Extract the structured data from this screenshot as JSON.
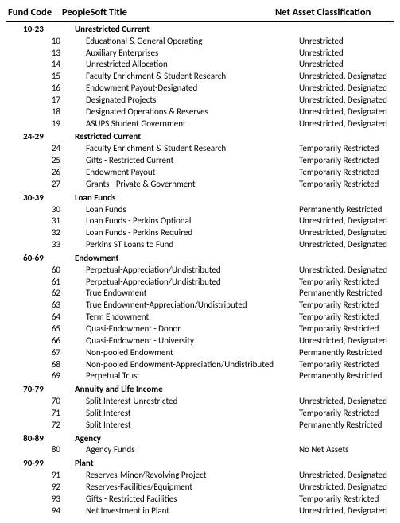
{
  "header": {
    "code": "Fund Code",
    "title": "PeopleSoft Title",
    "class": "Net Asset Classification"
  },
  "sections": [
    {
      "range": "10-23",
      "title": "Unrestricted Current",
      "rows": [
        {
          "code": "10",
          "title": "Educational & General Operating",
          "class": "Unrestricted"
        },
        {
          "code": "13",
          "title": "Auxiliary Enterprises",
          "class": "Unrestricted"
        },
        {
          "code": "14",
          "title": "Unrestricted Allocation",
          "class": "Unrestricted"
        },
        {
          "code": "15",
          "title": "Faculty Enrichment & Student  Research",
          "class": "Unrestricted, Designated"
        },
        {
          "code": "16",
          "title": "Endowment Payout-Designated",
          "class": "Unrestricted, Designated"
        },
        {
          "code": "17",
          "title": "Designated Projects",
          "class": "Unrestricted, Designated"
        },
        {
          "code": "18",
          "title": "Designated Operations & Reserves",
          "class": "Unrestricted, Designated"
        },
        {
          "code": "19",
          "title": "ASUPS Student Government",
          "class": "Unrestricted, Designated"
        }
      ]
    },
    {
      "range": "24-29",
      "title": "Restricted Current",
      "rows": [
        {
          "code": "24",
          "title": "Faculty Enrichment & Student  Research",
          "class": "Temporarily Restricted"
        },
        {
          "code": "25",
          "title": "Gifts - Restricted Current",
          "class": "Temporarily Restricted"
        },
        {
          "code": "26",
          "title": "Endowment Payout",
          "class": "Temporarily Restricted"
        },
        {
          "code": "27",
          "title": "Grants - Private & Government",
          "class": "Temporarily Restricted"
        }
      ]
    },
    {
      "range": "30-39",
      "title": "Loan Funds",
      "rows": [
        {
          "code": "30",
          "title": "Loan Funds",
          "class": "Permanently Restricted"
        },
        {
          "code": "31",
          "title": "Loan Funds - Perkins Optional",
          "class": "Unrestricted, Designated"
        },
        {
          "code": "32",
          "title": "Loan Funds - Perkins Required",
          "class": "Unrestricted, Designated"
        },
        {
          "code": "33",
          "title": "Perkins ST Loans to Fund",
          "class": "Unrestricted, Designated"
        }
      ]
    },
    {
      "range": "60-69",
      "title": "Endowment",
      "rows": [
        {
          "code": "60",
          "title": "Perpetual-Appreciation/Undistributed",
          "class": "Unrestricted. Designated"
        },
        {
          "code": "61",
          "title": "Perpetual-Appreciation/Undistributed",
          "class": "Temporarily Restricted"
        },
        {
          "code": "62",
          "title": "True Endowment",
          "class": "Permanently Restricted"
        },
        {
          "code": "63",
          "title": "True Endowment-Appreciation/Undistributed",
          "class": "Temporarily Restricted"
        },
        {
          "code": "64",
          "title": "Term Endowment",
          "class": "Temporarily Restricted"
        },
        {
          "code": "65",
          "title": "Quasi-Endowment - Donor",
          "class": "Temporarily Restricted"
        },
        {
          "code": "66",
          "title": "Quasi-Endowment - University",
          "class": "Unrestricted, Designated"
        },
        {
          "code": "67",
          "title": "Non-pooled Endowment",
          "class": "Permanently Restricted"
        },
        {
          "code": "68",
          "title": "Non-pooled Endowment-Appreciation/Undistributed",
          "class": "Temporarily Restricted"
        },
        {
          "code": "69",
          "title": "Perpetual Trust",
          "class": "Permanently Restricted"
        }
      ]
    },
    {
      "range": "70-79",
      "title": "Annuity and Life Income",
      "rows": [
        {
          "code": "70",
          "title": "Split Interest-Unrestricted",
          "class": "Unrestricted, Designated"
        },
        {
          "code": "71",
          "title": "Split Interest",
          "class": "Temporarily Restricted"
        },
        {
          "code": "72",
          "title": "Split Interest",
          "class": "Permanently Restricted"
        }
      ]
    },
    {
      "range": "80-89",
      "title": "Agency",
      "rows": [
        {
          "code": "80",
          "title": "Agency Funds",
          "class": "No Net Assets"
        }
      ]
    },
    {
      "range": "90-99",
      "title": "Plant",
      "rows": [
        {
          "code": "91",
          "title": "Reserves-Minor/Revolving Project",
          "class": "Unrestricted, Designated"
        },
        {
          "code": "92",
          "title": "Reserves-Facilities/Equipment",
          "class": "Unrestricted, Designated"
        },
        {
          "code": "93",
          "title": "Gifts - Restricted Facilities",
          "class": "Temporarily Restricted"
        },
        {
          "code": "94",
          "title": "Net Investment in Plant",
          "class": "Unrestricted, Designated"
        }
      ]
    }
  ]
}
